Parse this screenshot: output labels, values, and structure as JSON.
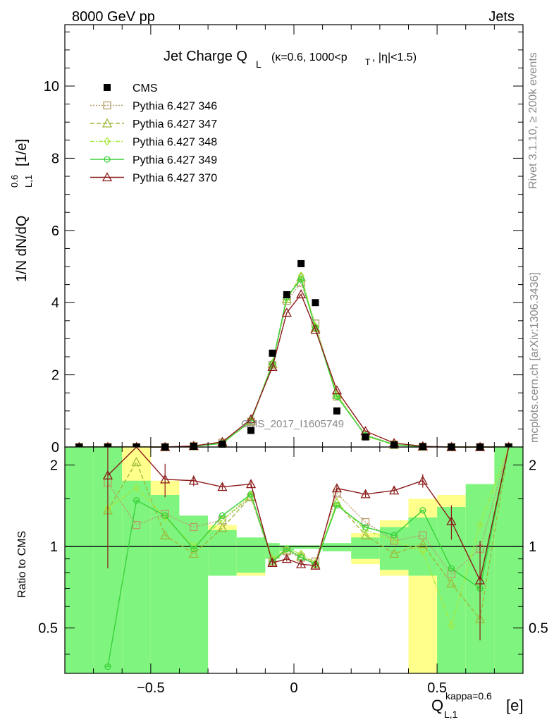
{
  "header": {
    "left": "8000 GeV pp",
    "right": "Jets"
  },
  "side_text": {
    "rivet": "Rivet 3.1.10, ≥ 200k events",
    "mcplots": "mcplots.cern.ch [arXiv:1306.3436]"
  },
  "watermark": "CMS_2017_I1605749",
  "colors": {
    "data": "#000000",
    "p346": "#b89d6a",
    "p347": "#9fb83a",
    "p348": "#a6e83a",
    "p349": "#3ad13a",
    "p370": "#8b1a1a",
    "band_stat": "#7ff57f",
    "band_syst": "#ffff8c"
  },
  "chart_data": [
    {
      "type": "line",
      "name": "main",
      "title_main": "Jet Charge Q",
      "title_sub": "L",
      "title_rest": "(κ=0.6, 1000<p",
      "title_pt_sub": "T",
      "title_end": ", |η|<1.5)",
      "ylabel": "1/N dN/dQ",
      "ylabel_sup": "0.6",
      "ylabel_sub": "L,1",
      "ylabel_unit": "[1/e]",
      "xlim": [
        -0.8,
        0.8
      ],
      "ylim": [
        0,
        11.7
      ],
      "yticks": [
        0,
        2,
        4,
        6,
        8,
        10
      ],
      "ytick_labels": [
        "0",
        "2",
        "4",
        "6",
        "8",
        "10"
      ],
      "legend": [
        {
          "key": "cms",
          "label": "CMS"
        },
        {
          "key": "p346",
          "label": "Pythia 6.427 346"
        },
        {
          "key": "p347",
          "label": "Pythia 6.427 347"
        },
        {
          "key": "p348",
          "label": "Pythia 6.427 348"
        },
        {
          "key": "p349",
          "label": "Pythia 6.427 349"
        },
        {
          "key": "p370",
          "label": "Pythia 6.427 370"
        }
      ],
      "data_points": {
        "x": [
          -0.75,
          -0.65,
          -0.55,
          -0.45,
          -0.35,
          -0.25,
          -0.15,
          -0.075,
          -0.025,
          0.025,
          0.075,
          0.15,
          0.25,
          0.35,
          0.45,
          0.55,
          0.65,
          0.75
        ],
        "y": [
          0.0,
          0.0,
          0.0,
          0.0,
          0.02,
          0.08,
          0.46,
          2.6,
          4.22,
          5.08,
          4.0,
          1.0,
          0.28,
          0.06,
          0.01,
          0.0,
          0.0,
          0.0
        ]
      },
      "series": [
        {
          "key": "p346",
          "label": "Pythia 6.427 346",
          "marker": "square",
          "dash": "2,2",
          "x": [
            -0.75,
            -0.65,
            -0.55,
            -0.45,
            -0.35,
            -0.25,
            -0.15,
            -0.075,
            -0.025,
            0.025,
            0.075,
            0.15,
            0.25,
            0.35,
            0.45,
            0.55,
            0.65,
            0.75
          ],
          "y": [
            0.0,
            0.0,
            0.0,
            0.0,
            0.03,
            0.12,
            0.7,
            2.27,
            4.05,
            4.55,
            3.42,
            1.4,
            0.34,
            0.07,
            0.01,
            0.0,
            0.0,
            0.0
          ]
        },
        {
          "key": "p347",
          "label": "Pythia 6.427 347",
          "marker": "triangle",
          "dash": "6,3",
          "x": [
            -0.75,
            -0.65,
            -0.55,
            -0.45,
            -0.35,
            -0.25,
            -0.15,
            -0.075,
            -0.025,
            0.025,
            0.075,
            0.15,
            0.25,
            0.35,
            0.45,
            0.55,
            0.65,
            0.75
          ],
          "y": [
            0.0,
            0.0,
            0.0,
            0.0,
            0.02,
            0.1,
            0.72,
            2.3,
            4.1,
            4.7,
            3.3,
            1.45,
            0.31,
            0.06,
            0.01,
            0.0,
            0.0,
            0.0
          ]
        },
        {
          "key": "p348",
          "label": "Pythia 6.427 348",
          "marker": "diamond",
          "dash": "6,2,2,2",
          "x": [
            -0.75,
            -0.65,
            -0.55,
            -0.45,
            -0.35,
            -0.25,
            -0.15,
            -0.075,
            -0.025,
            0.025,
            0.075,
            0.15,
            0.25,
            0.35,
            0.45,
            0.55,
            0.65,
            0.75
          ],
          "y": [
            0.0,
            0.0,
            0.0,
            0.0,
            0.02,
            0.1,
            0.72,
            2.33,
            4.12,
            4.75,
            3.35,
            1.45,
            0.31,
            0.06,
            0.01,
            0.0,
            0.0,
            0.0
          ]
        },
        {
          "key": "p349",
          "label": "Pythia 6.427 349",
          "marker": "circle",
          "dash": "",
          "x": [
            -0.75,
            -0.65,
            -0.55,
            -0.45,
            -0.35,
            -0.25,
            -0.15,
            -0.075,
            -0.025,
            0.025,
            0.075,
            0.15,
            0.25,
            0.35,
            0.45,
            0.55,
            0.65,
            0.75
          ],
          "y": [
            0.0,
            0.0,
            0.0,
            0.0,
            0.02,
            0.1,
            0.73,
            2.3,
            4.15,
            4.65,
            3.3,
            1.4,
            0.32,
            0.07,
            0.01,
            0.0,
            0.0,
            0.0
          ]
        },
        {
          "key": "p370",
          "label": "Pythia 6.427 370",
          "marker": "triangle",
          "dash": "",
          "x": [
            -0.75,
            -0.65,
            -0.55,
            -0.45,
            -0.35,
            -0.25,
            -0.15,
            -0.075,
            -0.025,
            0.025,
            0.075,
            0.15,
            0.25,
            0.35,
            0.45,
            0.55,
            0.65,
            0.75
          ],
          "y": [
            0.0,
            0.0,
            0.0,
            0.0,
            0.03,
            0.14,
            0.77,
            2.22,
            3.72,
            4.23,
            3.25,
            1.57,
            0.44,
            0.11,
            0.02,
            0.0,
            0.0,
            0.0
          ]
        }
      ]
    },
    {
      "type": "line",
      "name": "ratio",
      "ylabel": "Ratio to CMS",
      "xlabel": "Q",
      "xlabel_sup": "kappa=0.6",
      "xlabel_sub": "L,1",
      "xlabel_unit": "[e]",
      "xlim": [
        -0.8,
        0.8
      ],
      "ylim": [
        0.34,
        2.33
      ],
      "log_y": true,
      "reference": 1,
      "xticks": [
        -0.5,
        0,
        0.5
      ],
      "xtick_labels": [
        "−0.5",
        "0",
        "0.5"
      ],
      "yticks": [
        0.5,
        1,
        2
      ],
      "ytick_labels": [
        "0.5",
        "1",
        "2"
      ],
      "bands": {
        "edges": [
          -0.8,
          -0.7,
          -0.6,
          -0.5,
          -0.4,
          -0.3,
          -0.2,
          -0.1,
          -0.05,
          0.0,
          0.05,
          0.1,
          0.2,
          0.3,
          0.4,
          0.5,
          0.6,
          0.7,
          0.8
        ],
        "stat_lo": [
          0.34,
          0.34,
          0.34,
          0.34,
          0.34,
          0.78,
          0.8,
          0.9,
          0.96,
          0.98,
          0.98,
          0.96,
          0.9,
          0.82,
          0.78,
          0.34,
          0.34,
          0.34
        ],
        "stat_hi": [
          2.4,
          2.4,
          1.75,
          1.55,
          1.3,
          1.15,
          1.08,
          1.03,
          1.01,
          1.01,
          1.01,
          1.03,
          1.08,
          1.18,
          1.28,
          1.4,
          1.7,
          2.4
        ],
        "syst_lo": [
          0.34,
          0.34,
          0.34,
          0.34,
          0.34,
          0.78,
          0.78,
          0.9,
          0.96,
          0.98,
          0.98,
          0.96,
          0.86,
          0.78,
          0.34,
          0.34,
          0.34,
          0.34
        ],
        "syst_hi": [
          2.4,
          2.4,
          2.4,
          1.75,
          1.25,
          1.2,
          1.05,
          1.02,
          1.01,
          1.01,
          1.01,
          1.02,
          1.12,
          1.25,
          1.5,
          1.55,
          1.7,
          2.4
        ]
      },
      "series": [
        {
          "key": "p346",
          "marker": "square",
          "dash": "2,2",
          "x": [
            -0.65,
            -0.55,
            -0.45,
            -0.35,
            -0.25,
            -0.15,
            -0.075,
            -0.025,
            0.025,
            0.075,
            0.15,
            0.25,
            0.35,
            0.45,
            0.55,
            0.65,
            0.75
          ],
          "y": [
            1.72,
            1.2,
            1.32,
            1.18,
            1.25,
            1.52,
            0.88,
            0.96,
            0.91,
            0.88,
            1.57,
            1.23,
            1.05,
            1.1,
            0.79,
            0.98,
            2.4
          ]
        },
        {
          "key": "p347",
          "marker": "triangle",
          "dash": "6,3",
          "x": [
            -0.65,
            -0.55,
            -0.45,
            -0.35,
            -0.25,
            -0.15,
            -0.075,
            -0.025,
            0.025,
            0.075,
            0.15,
            0.25,
            0.35,
            0.45,
            0.55,
            0.65,
            0.75
          ],
          "y": [
            1.36,
            2.05,
            1.1,
            0.94,
            1.17,
            1.53,
            0.88,
            0.97,
            0.92,
            0.86,
            1.45,
            1.1,
            0.94,
            1.02,
            0.73,
            0.54,
            2.4
          ]
        },
        {
          "key": "p348",
          "marker": "diamond",
          "dash": "6,2,2,2",
          "x": [
            -0.65,
            -0.55,
            -0.45,
            -0.35,
            -0.25,
            -0.15,
            -0.075,
            -0.025,
            0.025,
            0.075,
            0.15,
            0.25,
            0.35,
            0.45,
            0.55,
            0.65,
            0.75
          ],
          "y": [
            1.38,
            1.65,
            1.28,
            1.0,
            1.25,
            1.55,
            0.9,
            0.98,
            0.94,
            0.87,
            1.45,
            1.15,
            1.05,
            0.96,
            0.51,
            1.2,
            2.4
          ]
        },
        {
          "key": "p349",
          "marker": "circle",
          "dash": "",
          "x": [
            -0.65,
            -0.55,
            -0.45,
            -0.35,
            -0.25,
            -0.15,
            -0.075,
            -0.025,
            0.025,
            0.075,
            0.15,
            0.25,
            0.35,
            0.45,
            0.55,
            0.65,
            0.75
          ],
          "y": [
            0.36,
            1.48,
            1.3,
            0.98,
            1.3,
            1.56,
            0.88,
            0.98,
            0.91,
            0.86,
            1.42,
            1.18,
            1.1,
            1.36,
            0.83,
            0.7,
            2.4
          ]
        },
        {
          "key": "p370",
          "marker": "triangle",
          "dash": "",
          "x": [
            -0.65,
            -0.55,
            -0.45,
            -0.35,
            -0.25,
            -0.15,
            -0.075,
            -0.025,
            0.025,
            0.075,
            0.15,
            0.25,
            0.35,
            0.45,
            0.55,
            0.65,
            0.75
          ],
          "y": [
            1.83,
            2.4,
            1.77,
            1.75,
            1.66,
            1.7,
            0.87,
            0.9,
            0.86,
            0.85,
            1.64,
            1.56,
            1.61,
            1.75,
            1.24,
            0.75,
            2.4
          ],
          "err": [
            1.0,
            0,
            0.25,
            0.08,
            0.04,
            0.04,
            0.02,
            0.02,
            0.02,
            0.02,
            0.04,
            0.04,
            0.05,
            0.1,
            0.18,
            0.3,
            0
          ]
        }
      ]
    }
  ]
}
